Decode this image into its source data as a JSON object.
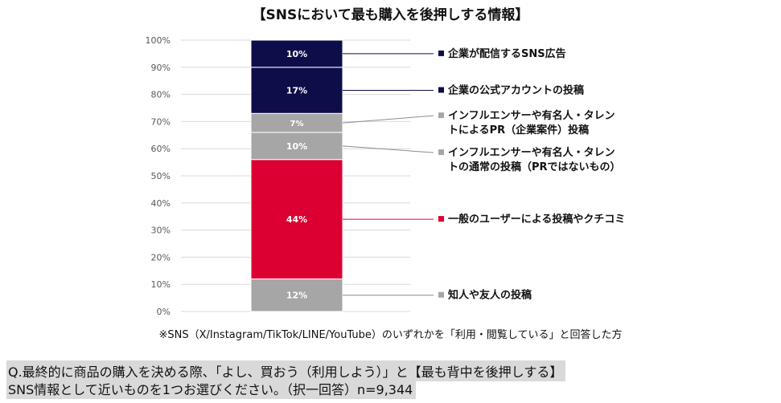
{
  "title": "【SNSにおいて最も購入を後押しする情報】",
  "footnote": "※SNS（X/Instagram/TikTok/LINE/YouTube）のいずれかを「利用・閲覧している」と回答した方",
  "question": {
    "line1": "Q.最終的に商品の購入を決める際、「よし、買おう（利用しよう）」と【最も背中を後押しする】",
    "line2": "SNS情報として近いものを1つお選びください。（択一回答）n=9,344"
  },
  "chart_data": {
    "type": "bar",
    "stacked": true,
    "title": "【SNSにおいて最も購入を後押しする情報】",
    "xlabel": "",
    "ylabel": "",
    "ylim": [
      0,
      100
    ],
    "y_ticks": [
      "0%",
      "10%",
      "20%",
      "30%",
      "40%",
      "50%",
      "60%",
      "70%",
      "80%",
      "90%",
      "100%"
    ],
    "grid": true,
    "legend": "right",
    "series": [
      {
        "name": "知人や友人の投稿",
        "value": 12,
        "label": "12%",
        "color": "#a6a6a6",
        "legend_lines": [
          "知人や友人の投稿"
        ]
      },
      {
        "name": "一般のユーザーによる投稿やクチコミ",
        "value": 44,
        "label": "44%",
        "color": "#dc0032",
        "legend_lines": [
          "一般のユーザーによる投稿やクチコミ"
        ]
      },
      {
        "name": "インフルエンサーや有名人・タレントの通常の投稿（PRではないもの）",
        "value": 10,
        "label": "10%",
        "color": "#a6a6a6",
        "legend_lines": [
          "インフルエンサーや有名人・タレン",
          "トの通常の投稿（PRではないもの）"
        ]
      },
      {
        "name": "インフルエンサーや有名人・タレントによるPR（企業案件）投稿",
        "value": 7,
        "label": "7%",
        "color": "#a6a6a6",
        "legend_lines": [
          "インフルエンサーや有名人・タレン",
          "トによるPR（企業案件）投稿"
        ]
      },
      {
        "name": "企業の公式アカウントの投稿",
        "value": 17,
        "label": "17%",
        "color": "#0d0d4a",
        "legend_lines": [
          "企業の公式アカウントの投稿"
        ]
      },
      {
        "name": "企業が配信するSNS広告",
        "value": 10,
        "label": "10%",
        "color": "#0d0d4a",
        "legend_lines": [
          "企業が配信するSNS広告"
        ]
      }
    ]
  }
}
